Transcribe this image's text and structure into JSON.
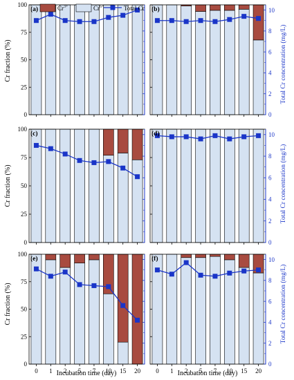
{
  "figure": {
    "left_axis_label": "Cr fraction (%)",
    "right_axis_label": "Total Cr concentration (mg/L)",
    "x_axis_label": "Incubation time (day)",
    "legend": {
      "cr3_base": "Cr",
      "cr3_sup": "3+",
      "cr6_base": "Cr",
      "cr6_sup": "6+",
      "total": "Total Cr"
    },
    "colors": {
      "cr3": "#a84b40",
      "cr6": "#d5e2f2",
      "total": "#1a35c8",
      "right_axis": "#1a35c8"
    }
  },
  "chart_data": [
    {
      "panel": "(a)",
      "type": "bar",
      "categories": [
        "0",
        "1",
        "2",
        "5",
        "7",
        "10",
        "15",
        "20"
      ],
      "series": [
        {
          "name": "Cr3+",
          "values": [
            0,
            0,
            0,
            0,
            0,
            0,
            0,
            0
          ]
        },
        {
          "name": "Cr6+",
          "values": [
            100,
            100,
            100,
            100,
            100,
            100,
            100,
            100
          ]
        },
        {
          "name": "Total Cr",
          "values": [
            9.0,
            9.6,
            9.0,
            8.9,
            8.9,
            9.3,
            9.5,
            10.0
          ]
        }
      ],
      "left_ylim": [
        0,
        100
      ],
      "left_ticks": [
        "0",
        "25",
        "50",
        "75",
        "100"
      ],
      "right_ylim": [
        0,
        10.5
      ],
      "right_ticks": [
        "0",
        "2",
        "4",
        "6",
        "8",
        "10"
      ]
    },
    {
      "panel": "(b)",
      "type": "bar",
      "categories": [
        "0",
        "1",
        "2",
        "5",
        "7",
        "10",
        "15",
        "20"
      ],
      "series": [
        {
          "name": "Cr3+",
          "values": [
            0,
            0,
            1,
            6,
            5,
            5,
            4,
            32
          ]
        },
        {
          "name": "Cr6+",
          "values": [
            100,
            100,
            99,
            94,
            95,
            95,
            96,
            68
          ]
        },
        {
          "name": "Total Cr",
          "values": [
            9.0,
            9.0,
            8.9,
            9.0,
            8.9,
            9.1,
            9.4,
            9.2
          ]
        }
      ],
      "left_ylim": [
        0,
        100
      ],
      "left_ticks": [
        "0",
        "25",
        "50",
        "75",
        "100"
      ],
      "right_ylim": [
        0,
        10.5
      ],
      "right_ticks": [
        "0",
        "2",
        "4",
        "6",
        "8",
        "10"
      ]
    },
    {
      "panel": "(c)",
      "type": "bar",
      "categories": [
        "0",
        "1",
        "2",
        "5",
        "7",
        "10",
        "15",
        "20"
      ],
      "series": [
        {
          "name": "Cr3+",
          "values": [
            0,
            0,
            0,
            0,
            0,
            23,
            21,
            27
          ]
        },
        {
          "name": "Cr6+",
          "values": [
            100,
            100,
            100,
            100,
            100,
            77,
            79,
            73
          ]
        },
        {
          "name": "Total Cr",
          "values": [
            9.0,
            8.7,
            8.2,
            7.6,
            7.4,
            7.5,
            6.9,
            6.1
          ]
        }
      ],
      "left_ylim": [
        0,
        100
      ],
      "left_ticks": [
        "0",
        "25",
        "50",
        "75",
        "100"
      ],
      "right_ylim": [
        0,
        10.5
      ],
      "right_ticks": [
        "0",
        "2",
        "4",
        "6",
        "8",
        "10"
      ]
    },
    {
      "panel": "(d)",
      "type": "bar",
      "categories": [
        "0",
        "1",
        "2",
        "5",
        "7",
        "10",
        "15",
        "20"
      ],
      "series": [
        {
          "name": "Cr3+",
          "values": [
            0,
            0,
            0,
            0,
            0,
            0,
            0,
            0
          ]
        },
        {
          "name": "Cr6+",
          "values": [
            100,
            100,
            100,
            100,
            100,
            100,
            100,
            100
          ]
        },
        {
          "name": "Total Cr",
          "values": [
            9.9,
            9.8,
            9.8,
            9.6,
            9.9,
            9.6,
            9.8,
            9.9
          ]
        }
      ],
      "left_ylim": [
        0,
        100
      ],
      "left_ticks": [
        "0",
        "25",
        "50",
        "75",
        "100"
      ],
      "right_ylim": [
        0,
        10.5
      ],
      "right_ticks": [
        "0",
        "2",
        "4",
        "6",
        "8",
        "10"
      ]
    },
    {
      "panel": "(e)",
      "type": "bar",
      "categories": [
        "0",
        "1",
        "2",
        "5",
        "7",
        "10",
        "15",
        "20"
      ],
      "series": [
        {
          "name": "Cr3+",
          "values": [
            0,
            5,
            12,
            8,
            5,
            36,
            80,
            100
          ]
        },
        {
          "name": "Cr6+",
          "values": [
            100,
            95,
            88,
            92,
            95,
            64,
            20,
            0
          ]
        },
        {
          "name": "Total Cr",
          "values": [
            9.1,
            8.4,
            8.8,
            7.6,
            7.5,
            7.4,
            5.6,
            4.2
          ]
        }
      ],
      "left_ylim": [
        0,
        100
      ],
      "left_ticks": [
        "0",
        "25",
        "50",
        "75",
        "100"
      ],
      "right_ylim": [
        0,
        10.5
      ],
      "right_ticks": [
        "0",
        "2",
        "4",
        "6",
        "8",
        "10"
      ]
    },
    {
      "panel": "(f)",
      "type": "bar",
      "categories": [
        "0",
        "1",
        "2",
        "5",
        "7",
        "10",
        "15",
        "20"
      ],
      "series": [
        {
          "name": "Cr3+",
          "values": [
            0,
            0,
            3,
            3,
            2,
            5,
            12,
            17
          ]
        },
        {
          "name": "Cr6+",
          "values": [
            100,
            100,
            97,
            97,
            98,
            95,
            88,
            83
          ]
        },
        {
          "name": "Total Cr",
          "values": [
            9.0,
            8.6,
            9.7,
            8.5,
            8.4,
            8.7,
            8.9,
            9.0
          ]
        }
      ],
      "left_ylim": [
        0,
        100
      ],
      "left_ticks": [
        "0",
        "25",
        "50",
        "75",
        "100"
      ],
      "right_ylim": [
        0,
        10.5
      ],
      "right_ticks": [
        "0",
        "2",
        "4",
        "6",
        "8",
        "10"
      ]
    }
  ]
}
